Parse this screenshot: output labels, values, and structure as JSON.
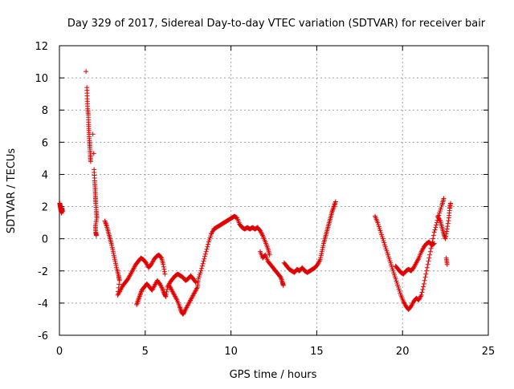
{
  "chart_data": {
    "type": "scatter",
    "title": "Day 329 of 2017, Sidereal Day-to-day VTEC variation (SDTVAR) for receiver bair",
    "xlabel": "GPS time / hours",
    "ylabel": "SDTVAR / TECUs",
    "xlim": [
      0,
      25
    ],
    "ylim": [
      -6,
      12
    ],
    "xticks": [
      0,
      5,
      10,
      15,
      20,
      25
    ],
    "yticks": [
      -6,
      -4,
      -2,
      0,
      2,
      4,
      6,
      8,
      10,
      12
    ],
    "grid": true,
    "marker": "+",
    "color": "#e00000",
    "series": [
      {
        "name": "SDTVAR",
        "points": [
          [
            0.02,
            2.2
          ],
          [
            0.05,
            2.0
          ],
          [
            0.08,
            1.8
          ],
          [
            0.12,
            1.6
          ],
          [
            0.15,
            1.9
          ],
          [
            0.18,
            1.7
          ],
          [
            1.55,
            10.4
          ],
          [
            1.6,
            9.4
          ],
          [
            1.62,
            8.7
          ],
          [
            1.65,
            8.1
          ],
          [
            1.68,
            7.7
          ],
          [
            1.7,
            7.1
          ],
          [
            1.72,
            6.6
          ],
          [
            1.75,
            6.1
          ],
          [
            1.77,
            5.7
          ],
          [
            1.8,
            5.2
          ],
          [
            1.82,
            4.8
          ],
          [
            1.95,
            6.5
          ],
          [
            2.0,
            5.3
          ],
          [
            2.02,
            4.3
          ],
          [
            2.05,
            3.6
          ],
          [
            2.08,
            3.1
          ],
          [
            2.1,
            2.6
          ],
          [
            2.12,
            2.2
          ],
          [
            2.15,
            1.7
          ],
          [
            2.18,
            1.3
          ],
          [
            2.1,
            0.8
          ],
          [
            2.12,
            0.4
          ],
          [
            2.15,
            0.2
          ],
          [
            2.65,
            1.1
          ],
          [
            2.75,
            0.8
          ],
          [
            2.85,
            0.4
          ],
          [
            2.95,
            0.0
          ],
          [
            3.05,
            -0.4
          ],
          [
            3.15,
            -0.9
          ],
          [
            3.25,
            -1.4
          ],
          [
            3.35,
            -1.9
          ],
          [
            3.45,
            -2.3
          ],
          [
            3.5,
            -2.6
          ],
          [
            3.4,
            -3.5
          ],
          [
            3.55,
            -3.2
          ],
          [
            3.7,
            -2.9
          ],
          [
            3.85,
            -2.7
          ],
          [
            4.0,
            -2.5
          ],
          [
            4.15,
            -2.2
          ],
          [
            4.3,
            -1.9
          ],
          [
            4.45,
            -1.6
          ],
          [
            4.6,
            -1.4
          ],
          [
            4.75,
            -1.2
          ],
          [
            4.9,
            -1.3
          ],
          [
            5.05,
            -1.5
          ],
          [
            5.2,
            -1.8
          ],
          [
            5.35,
            -1.6
          ],
          [
            5.5,
            -1.3
          ],
          [
            5.65,
            -1.1
          ],
          [
            5.8,
            -1.0
          ],
          [
            5.95,
            -1.2
          ],
          [
            6.05,
            -1.6
          ],
          [
            6.15,
            -2.2
          ],
          [
            4.5,
            -4.1
          ],
          [
            4.6,
            -3.8
          ],
          [
            4.7,
            -3.5
          ],
          [
            4.8,
            -3.2
          ],
          [
            4.95,
            -3.0
          ],
          [
            5.1,
            -2.8
          ],
          [
            5.25,
            -3.0
          ],
          [
            5.4,
            -3.2
          ],
          [
            5.55,
            -2.9
          ],
          [
            5.7,
            -2.6
          ],
          [
            5.85,
            -2.8
          ],
          [
            6.0,
            -3.1
          ],
          [
            6.1,
            -3.4
          ],
          [
            6.2,
            -3.6
          ],
          [
            6.3,
            -3.0
          ],
          [
            6.45,
            -2.7
          ],
          [
            6.6,
            -2.5
          ],
          [
            6.75,
            -2.3
          ],
          [
            6.9,
            -2.2
          ],
          [
            7.05,
            -2.3
          ],
          [
            7.2,
            -2.4
          ],
          [
            7.35,
            -2.6
          ],
          [
            7.5,
            -2.5
          ],
          [
            7.65,
            -2.3
          ],
          [
            7.8,
            -2.5
          ],
          [
            7.95,
            -2.7
          ],
          [
            6.4,
            -2.9
          ],
          [
            6.55,
            -3.2
          ],
          [
            6.7,
            -3.5
          ],
          [
            6.85,
            -3.8
          ],
          [
            7.0,
            -4.2
          ],
          [
            7.1,
            -4.5
          ],
          [
            7.2,
            -4.7
          ],
          [
            7.3,
            -4.5
          ],
          [
            7.45,
            -4.2
          ],
          [
            7.6,
            -3.9
          ],
          [
            7.75,
            -3.6
          ],
          [
            7.9,
            -3.3
          ],
          [
            8.05,
            -3.0
          ],
          [
            8.1,
            -2.5
          ],
          [
            8.25,
            -2.0
          ],
          [
            8.4,
            -1.4
          ],
          [
            8.55,
            -0.8
          ],
          [
            8.7,
            -0.2
          ],
          [
            8.85,
            0.3
          ],
          [
            9.0,
            0.6
          ],
          [
            9.15,
            0.7
          ],
          [
            9.3,
            0.8
          ],
          [
            9.45,
            0.9
          ],
          [
            9.6,
            1.0
          ],
          [
            9.75,
            1.1
          ],
          [
            9.9,
            1.2
          ],
          [
            10.05,
            1.3
          ],
          [
            10.2,
            1.4
          ],
          [
            10.35,
            1.3
          ],
          [
            10.5,
            0.9
          ],
          [
            10.65,
            0.7
          ],
          [
            10.8,
            0.6
          ],
          [
            10.95,
            0.7
          ],
          [
            11.1,
            0.6
          ],
          [
            11.25,
            0.7
          ],
          [
            11.4,
            0.6
          ],
          [
            11.55,
            0.7
          ],
          [
            11.7,
            0.5
          ],
          [
            11.85,
            0.2
          ],
          [
            12.0,
            -0.2
          ],
          [
            12.15,
            -0.6
          ],
          [
            12.25,
            -1.0
          ],
          [
            11.7,
            -0.8
          ],
          [
            11.85,
            -1.2
          ],
          [
            12.0,
            -1.0
          ],
          [
            12.15,
            -1.4
          ],
          [
            12.3,
            -1.6
          ],
          [
            12.45,
            -1.8
          ],
          [
            12.6,
            -2.0
          ],
          [
            12.75,
            -2.2
          ],
          [
            12.9,
            -2.4
          ],
          [
            13.0,
            -2.7
          ],
          [
            13.05,
            -2.9
          ],
          [
            13.1,
            -1.5
          ],
          [
            13.25,
            -1.7
          ],
          [
            13.4,
            -1.9
          ],
          [
            13.55,
            -2.0
          ],
          [
            13.7,
            -2.1
          ],
          [
            13.85,
            -1.9
          ],
          [
            14.0,
            -2.0
          ],
          [
            14.15,
            -1.8
          ],
          [
            14.3,
            -2.0
          ],
          [
            14.45,
            -2.1
          ],
          [
            14.6,
            -2.0
          ],
          [
            14.75,
            -1.9
          ],
          [
            14.9,
            -1.8
          ],
          [
            15.05,
            -1.6
          ],
          [
            15.2,
            -1.3
          ],
          [
            15.3,
            -0.8
          ],
          [
            15.4,
            -0.3
          ],
          [
            15.5,
            0.1
          ],
          [
            15.6,
            0.5
          ],
          [
            15.7,
            0.9
          ],
          [
            15.8,
            1.3
          ],
          [
            15.9,
            1.7
          ],
          [
            16.0,
            2.0
          ],
          [
            16.1,
            2.3
          ],
          [
            18.4,
            1.4
          ],
          [
            18.55,
            1.0
          ],
          [
            18.7,
            0.5
          ],
          [
            18.85,
            0.0
          ],
          [
            19.0,
            -0.5
          ],
          [
            19.15,
            -1.0
          ],
          [
            19.3,
            -1.5
          ],
          [
            19.45,
            -2.0
          ],
          [
            19.6,
            -2.5
          ],
          [
            19.75,
            -3.0
          ],
          [
            19.9,
            -3.5
          ],
          [
            20.05,
            -3.9
          ],
          [
            20.2,
            -4.2
          ],
          [
            20.35,
            -4.4
          ],
          [
            20.5,
            -4.2
          ],
          [
            20.65,
            -3.9
          ],
          [
            20.8,
            -3.7
          ],
          [
            20.95,
            -3.8
          ],
          [
            21.1,
            -3.5
          ],
          [
            21.25,
            -2.8
          ],
          [
            21.4,
            -2.0
          ],
          [
            21.55,
            -1.2
          ],
          [
            21.7,
            -0.4
          ],
          [
            21.85,
            0.4
          ],
          [
            22.0,
            1.0
          ],
          [
            22.15,
            1.6
          ],
          [
            22.3,
            2.1
          ],
          [
            22.4,
            2.5
          ],
          [
            19.6,
            -1.7
          ],
          [
            19.75,
            -1.9
          ],
          [
            19.9,
            -2.1
          ],
          [
            20.05,
            -2.2
          ],
          [
            20.2,
            -2.0
          ],
          [
            20.35,
            -1.9
          ],
          [
            20.5,
            -2.0
          ],
          [
            20.65,
            -1.8
          ],
          [
            20.8,
            -1.5
          ],
          [
            20.95,
            -1.2
          ],
          [
            21.1,
            -0.8
          ],
          [
            21.25,
            -0.5
          ],
          [
            21.4,
            -0.3
          ],
          [
            21.55,
            -0.2
          ],
          [
            21.7,
            -0.4
          ],
          [
            21.85,
            -0.3
          ],
          [
            22.05,
            1.4
          ],
          [
            22.2,
            1.1
          ],
          [
            22.3,
            0.7
          ],
          [
            22.4,
            0.3
          ],
          [
            22.5,
            0.0
          ],
          [
            22.6,
            0.6
          ],
          [
            22.7,
            1.3
          ],
          [
            22.75,
            1.9
          ],
          [
            22.8,
            2.2
          ],
          [
            22.55,
            -1.2
          ],
          [
            22.6,
            -1.6
          ]
        ]
      }
    ]
  }
}
